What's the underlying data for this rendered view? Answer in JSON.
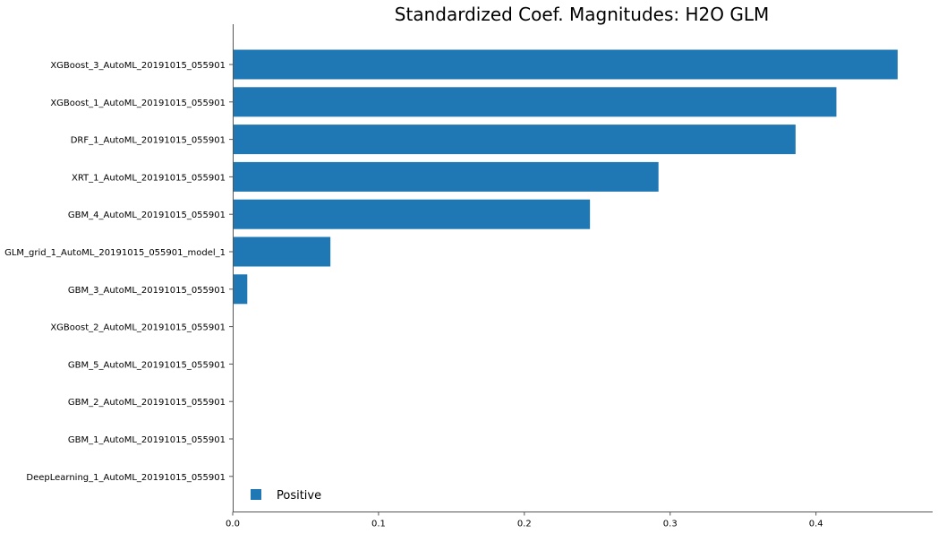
{
  "chart_data": {
    "type": "bar",
    "orientation": "horizontal",
    "title": "Standardized Coef. Magnitudes: H2O GLM",
    "xlabel": "",
    "ylabel": "",
    "categories": [
      "XGBoost_3_AutoML_20191015_055901",
      "XGBoost_1_AutoML_20191015_055901",
      "DRF_1_AutoML_20191015_055901",
      "XRT_1_AutoML_20191015_055901",
      "GBM_4_AutoML_20191015_055901",
      "GLM_grid_1_AutoML_20191015_055901_model_1",
      "GBM_3_AutoML_20191015_055901",
      "XGBoost_2_AutoML_20191015_055901",
      "GBM_5_AutoML_20191015_055901",
      "GBM_2_AutoML_20191015_055901",
      "GBM_1_AutoML_20191015_055901",
      "DeepLearning_1_AutoML_20191015_055901"
    ],
    "series": [
      {
        "name": "Positive",
        "color": "#1f77b4",
        "values": [
          0.456,
          0.414,
          0.386,
          0.292,
          0.245,
          0.067,
          0.01,
          0,
          0,
          0,
          0,
          0
        ]
      }
    ],
    "xlim": [
      0,
      0.48
    ],
    "xticks": [
      0.0,
      0.1,
      0.2,
      0.3,
      0.4
    ],
    "xtick_labels": [
      "0.0",
      "0.1",
      "0.2",
      "0.3",
      "0.4"
    ],
    "grid": false,
    "legend_position": "bottom-left"
  }
}
